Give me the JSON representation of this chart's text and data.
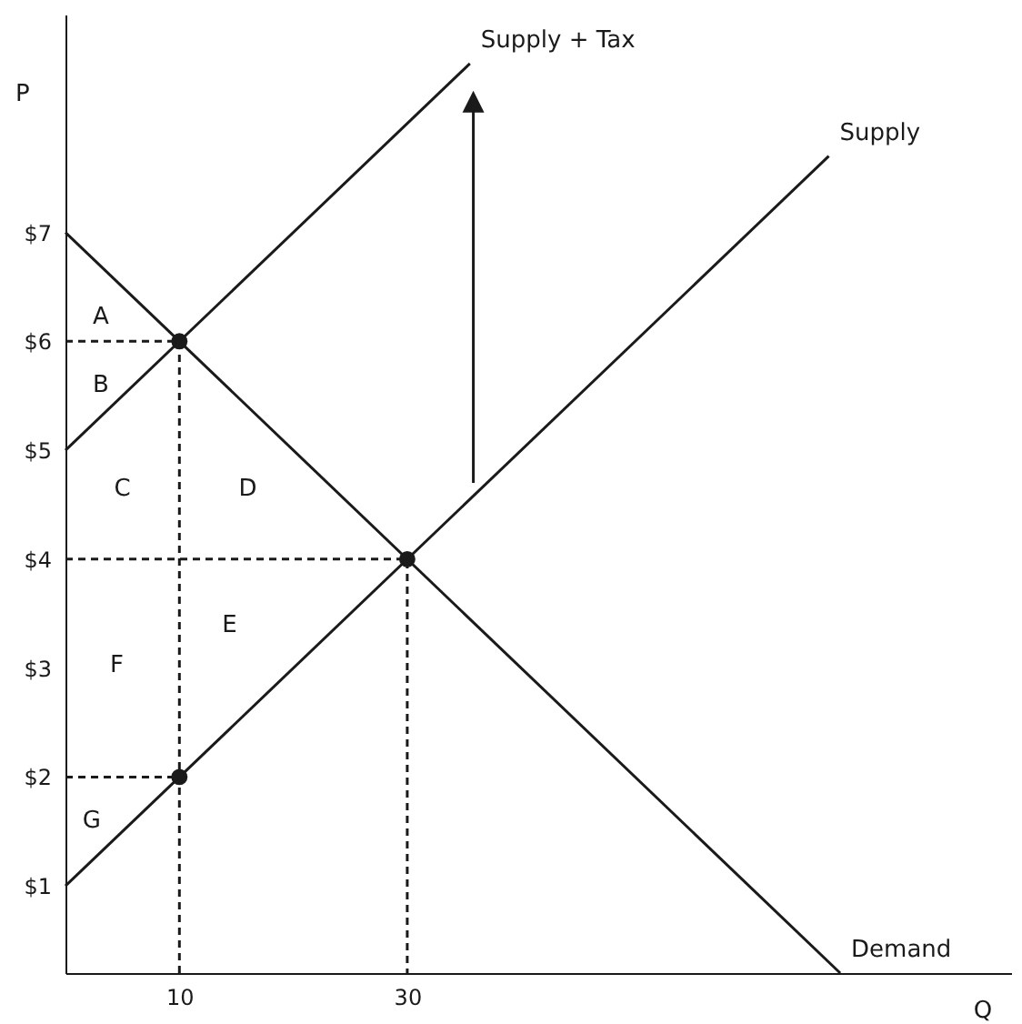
{
  "chart_data": {
    "type": "line",
    "xlabel": "Q",
    "ylabel": "P",
    "xlim": [
      0,
      83
    ],
    "ylim": [
      0.2,
      9
    ],
    "xticks": [
      10,
      30
    ],
    "yticks": [
      {
        "value": 1,
        "label": "$1"
      },
      {
        "value": 2,
        "label": "$2"
      },
      {
        "value": 3,
        "label": "$3"
      },
      {
        "value": 4,
        "label": "$4"
      },
      {
        "value": 5,
        "label": "$5"
      },
      {
        "value": 6,
        "label": "$6"
      },
      {
        "value": 7,
        "label": "$7"
      }
    ],
    "grid": false,
    "series": [
      {
        "name": "Supply + Tax",
        "type": "line",
        "color": "#1a1a1a",
        "x": [
          0,
          35.5
        ],
        "values": [
          5,
          8.55
        ]
      },
      {
        "name": "Supply",
        "type": "line",
        "color": "#1a1a1a",
        "x": [
          0,
          67
        ],
        "values": [
          1,
          7.7
        ]
      },
      {
        "name": "Demand",
        "type": "line",
        "color": "#1a1a1a",
        "x": [
          0,
          68
        ],
        "values": [
          7,
          0.2
        ]
      },
      {
        "type": "line",
        "line_style": "dashed",
        "color": "#1a1a1a",
        "x": [
          0,
          10,
          10
        ],
        "values": [
          6,
          6,
          0.2
        ]
      },
      {
        "type": "line",
        "line_style": "dashed",
        "color": "#1a1a1a",
        "x": [
          0,
          30,
          30
        ],
        "values": [
          4,
          4,
          0.2
        ]
      },
      {
        "type": "line",
        "line_style": "dashed",
        "color": "#1a1a1a",
        "x": [
          0,
          10
        ],
        "values": [
          2,
          2
        ]
      },
      {
        "type": "scatter",
        "marker": "circle",
        "color": "#1a1a1a",
        "x": [
          10,
          30,
          10
        ],
        "values": [
          6,
          4,
          2
        ]
      }
    ],
    "annotations": [
      "A",
      "B",
      "C",
      "D",
      "E",
      "F",
      "G"
    ]
  }
}
